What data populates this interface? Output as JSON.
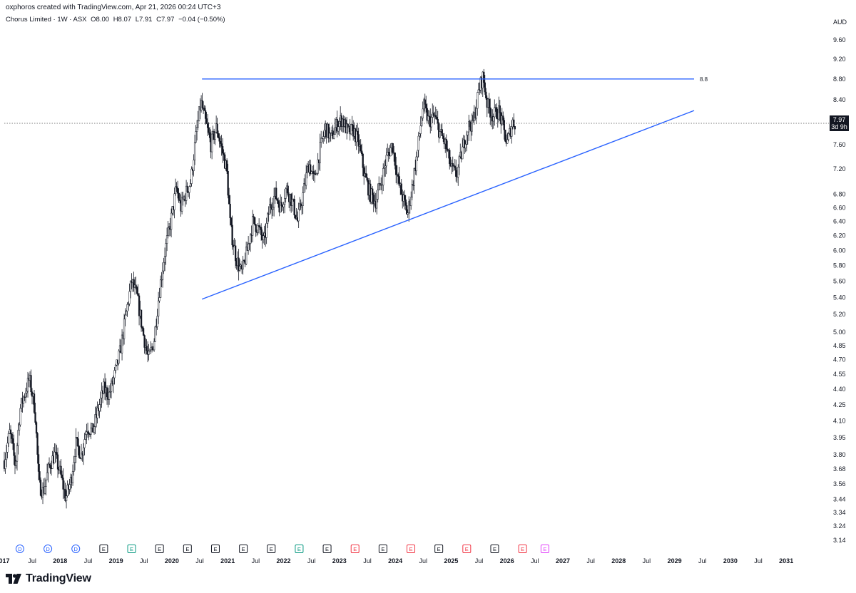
{
  "header": {
    "credit": "oxphoros created with TradingView.com, Apr 21, 2026 00:24 UTC+3",
    "symbol": "Chorus Limited · 1W · ASX",
    "open": "O8.00",
    "high": "H8.07",
    "low": "L7.91",
    "close": "C7.97",
    "change": "−0.04 (−0.50%)",
    "currency": "AUD"
  },
  "price_label": {
    "value": "7.97",
    "countdown": "3d 9h"
  },
  "brand": {
    "name": "TradingView",
    "icon": "tradingview-logo-icon"
  },
  "chart_data": {
    "type": "candlestick",
    "interval": "1W",
    "scale": "log",
    "grid": false,
    "y_ticks": [
      "9.60",
      "9.20",
      "8.80",
      "8.40",
      "7.60",
      "7.20",
      "6.80",
      "6.60",
      "6.40",
      "6.20",
      "6.00",
      "5.80",
      "5.60",
      "5.40",
      "5.20",
      "5.00",
      "4.85",
      "4.70",
      "4.55",
      "4.40",
      "4.25",
      "4.10",
      "3.95",
      "3.80",
      "3.68",
      "3.56",
      "3.44",
      "3.34",
      "3.24",
      "3.14"
    ],
    "x_ticks": [
      "017",
      "Jul",
      "2018",
      "Jul",
      "2019",
      "Jul",
      "2020",
      "Jul",
      "2021",
      "Jul",
      "2022",
      "Jul",
      "2023",
      "Jul",
      "2024",
      "Jul",
      "2025",
      "Jul",
      "2026",
      "Jul",
      "2027",
      "Jul",
      "2028",
      "Jul",
      "2029",
      "Jul",
      "2030",
      "Jul",
      "2031"
    ],
    "x_range": [
      2017.0,
      2031.7
    ],
    "y_range": [
      3.08,
      9.85
    ],
    "last_close": 7.97,
    "price_path": [
      [
        2017.0,
        3.75
      ],
      [
        2017.1,
        4.0
      ],
      [
        2017.2,
        3.7
      ],
      [
        2017.28,
        4.2
      ],
      [
        2017.36,
        4.35
      ],
      [
        2017.45,
        4.5
      ],
      [
        2017.55,
        4.2
      ],
      [
        2017.62,
        3.55
      ],
      [
        2017.7,
        3.5
      ],
      [
        2017.8,
        3.7
      ],
      [
        2017.9,
        3.8
      ],
      [
        2018.0,
        3.65
      ],
      [
        2018.1,
        3.45
      ],
      [
        2018.2,
        3.6
      ],
      [
        2018.28,
        3.9
      ],
      [
        2018.38,
        3.8
      ],
      [
        2018.48,
        4.05
      ],
      [
        2018.58,
        4.0
      ],
      [
        2018.68,
        4.2
      ],
      [
        2018.78,
        4.4
      ],
      [
        2018.88,
        4.35
      ],
      [
        2018.98,
        4.55
      ],
      [
        2019.08,
        4.8
      ],
      [
        2019.18,
        5.2
      ],
      [
        2019.28,
        5.6
      ],
      [
        2019.38,
        5.4
      ],
      [
        2019.48,
        5.0
      ],
      [
        2019.58,
        4.7
      ],
      [
        2019.68,
        4.9
      ],
      [
        2019.78,
        5.5
      ],
      [
        2019.88,
        6.0
      ],
      [
        2019.98,
        6.4
      ],
      [
        2020.08,
        6.9
      ],
      [
        2020.16,
        6.6
      ],
      [
        2020.24,
        6.8
      ],
      [
        2020.34,
        7.0
      ],
      [
        2020.44,
        7.8
      ],
      [
        2020.52,
        8.35
      ],
      [
        2020.6,
        8.0
      ],
      [
        2020.7,
        7.6
      ],
      [
        2020.8,
        7.9
      ],
      [
        2020.9,
        7.5
      ],
      [
        2020.98,
        7.2
      ],
      [
        2021.05,
        6.3
      ],
      [
        2021.15,
        5.9
      ],
      [
        2021.25,
        5.7
      ],
      [
        2021.35,
        6.0
      ],
      [
        2021.45,
        6.4
      ],
      [
        2021.55,
        6.3
      ],
      [
        2021.65,
        6.1
      ],
      [
        2021.75,
        6.6
      ],
      [
        2021.85,
        6.8
      ],
      [
        2021.95,
        6.6
      ],
      [
        2022.05,
        6.9
      ],
      [
        2022.15,
        6.7
      ],
      [
        2022.25,
        6.4
      ],
      [
        2022.35,
        6.8
      ],
      [
        2022.45,
        7.3
      ],
      [
        2022.55,
        7.0
      ],
      [
        2022.65,
        7.5
      ],
      [
        2022.75,
        7.9
      ],
      [
        2022.85,
        7.7
      ],
      [
        2022.95,
        7.95
      ],
      [
        2023.05,
        8.05
      ],
      [
        2023.15,
        7.8
      ],
      [
        2023.25,
        7.85
      ],
      [
        2023.35,
        7.6
      ],
      [
        2023.45,
        7.1
      ],
      [
        2023.55,
        6.8
      ],
      [
        2023.65,
        6.7
      ],
      [
        2023.75,
        7.0
      ],
      [
        2023.85,
        7.4
      ],
      [
        2023.95,
        7.6
      ],
      [
        2024.05,
        7.0
      ],
      [
        2024.15,
        6.7
      ],
      [
        2024.22,
        6.5
      ],
      [
        2024.3,
        6.9
      ],
      [
        2024.4,
        7.5
      ],
      [
        2024.5,
        8.3
      ],
      [
        2024.6,
        8.0
      ],
      [
        2024.7,
        8.1
      ],
      [
        2024.8,
        7.8
      ],
      [
        2024.9,
        7.6
      ],
      [
        2025.0,
        7.2
      ],
      [
        2025.1,
        7.1
      ],
      [
        2025.2,
        7.5
      ],
      [
        2025.3,
        7.9
      ],
      [
        2025.4,
        8.0
      ],
      [
        2025.5,
        8.6
      ],
      [
        2025.57,
        8.85
      ],
      [
        2025.65,
        8.3
      ],
      [
        2025.75,
        8.1
      ],
      [
        2025.85,
        8.2
      ],
      [
        2025.93,
        7.9
      ],
      [
        2026.0,
        7.6
      ],
      [
        2026.06,
        7.85
      ],
      [
        2026.1,
        8.0
      ],
      [
        2026.15,
        7.97
      ]
    ],
    "drawings": [
      {
        "kind": "horizontal-ray",
        "from_x": 2020.54,
        "to_x": 2029.35,
        "y": 8.8,
        "label": "8.8",
        "color": "#2962ff"
      },
      {
        "kind": "trend-line",
        "from": [
          2020.54,
          5.38
        ],
        "to": [
          2029.35,
          8.2
        ],
        "color": "#2962ff"
      }
    ],
    "events": [
      {
        "letter": "D",
        "x": 2017.28,
        "color": "#2962ff"
      },
      {
        "letter": "D",
        "x": 2017.78,
        "color": "#2962ff"
      },
      {
        "letter": "D",
        "x": 2018.28,
        "color": "#2962ff"
      },
      {
        "letter": "E",
        "x": 2018.78,
        "color": "#131722"
      },
      {
        "letter": "E",
        "x": 2019.28,
        "color": "#089981"
      },
      {
        "letter": "E",
        "x": 2019.78,
        "color": "#131722"
      },
      {
        "letter": "E",
        "x": 2020.28,
        "color": "#131722"
      },
      {
        "letter": "E",
        "x": 2020.78,
        "color": "#131722"
      },
      {
        "letter": "E",
        "x": 2021.28,
        "color": "#131722"
      },
      {
        "letter": "E",
        "x": 2021.78,
        "color": "#131722"
      },
      {
        "letter": "E",
        "x": 2022.28,
        "color": "#089981"
      },
      {
        "letter": "E",
        "x": 2022.78,
        "color": "#131722"
      },
      {
        "letter": "E",
        "x": 2023.28,
        "color": "#f23645"
      },
      {
        "letter": "E",
        "x": 2023.78,
        "color": "#131722"
      },
      {
        "letter": "E",
        "x": 2024.28,
        "color": "#f23645"
      },
      {
        "letter": "E",
        "x": 2024.78,
        "color": "#131722"
      },
      {
        "letter": "E",
        "x": 2025.28,
        "color": "#f23645"
      },
      {
        "letter": "E",
        "x": 2025.78,
        "color": "#131722"
      },
      {
        "letter": "E",
        "x": 2026.28,
        "color": "#f23645"
      },
      {
        "letter": "E",
        "x": 2026.68,
        "color": "#e040fb"
      }
    ]
  }
}
